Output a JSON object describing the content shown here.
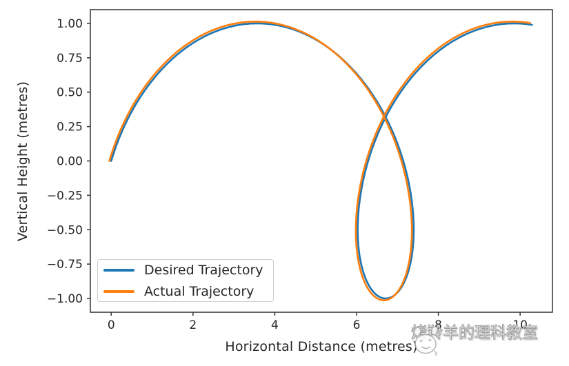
{
  "figure": {
    "background": "#ffffff"
  },
  "chart_data": {
    "type": "line",
    "title": "",
    "xlabel": "Horizontal Distance (metres)",
    "ylabel": "Vertical Height (metres)",
    "xlim": [
      -0.51,
      10.79
    ],
    "ylim": [
      -1.1,
      1.1
    ],
    "x_ticks": [
      0,
      2,
      4,
      6,
      8,
      10
    ],
    "x_tick_labels": [
      "0",
      "2",
      "4",
      "6",
      "8",
      "10"
    ],
    "y_ticks": [
      1.0,
      0.75,
      0.5,
      0.25,
      0.0,
      -0.25,
      -0.5,
      -0.75,
      -1.0
    ],
    "y_tick_labels": [
      "1.00",
      "0.75",
      "0.50",
      "0.25",
      "0.00",
      "−0.25",
      "−0.50",
      "−0.75",
      "−1.00"
    ],
    "grid": false,
    "legend": {
      "position": "lower-left",
      "entries": [
        "Desired Trajectory",
        "Actual Trajectory"
      ]
    },
    "series": [
      {
        "name": "Desired Trajectory",
        "color": "#1f77b4",
        "line_width": 2.7,
        "parametric": {
          "description": "looping cycloid: x = t + a*(1 - cos t) + dx ; y = amp*sin t",
          "a": 2.0,
          "dx": 0.0,
          "amp": 1.0,
          "t_min": 0,
          "t_max": 8
        },
        "key_points": [
          [
            0,
            0
          ],
          [
            0.74,
            0.48
          ],
          [
            1.92,
            0.84
          ],
          [
            3.36,
            1.0
          ],
          [
            3.57,
            1.0
          ],
          [
            4.83,
            0.91
          ],
          [
            6.1,
            0.6
          ],
          [
            6.98,
            0.14
          ],
          [
            7.4,
            -0.5
          ],
          [
            7.31,
            -0.76
          ],
          [
            6.92,
            -0.98
          ],
          [
            6.71,
            -1.0
          ],
          [
            6.43,
            -0.96
          ],
          [
            6.03,
            -0.5
          ],
          [
            6.08,
            -0.28
          ],
          [
            6.28,
            0.0
          ],
          [
            6.71,
            0.32
          ],
          [
            7.49,
            0.66
          ],
          [
            8.81,
            0.94
          ],
          [
            10.29,
            0.99
          ]
        ],
        "self_intersection": [
          6.71,
          0.32
        ]
      },
      {
        "name": "Actual Trajectory",
        "color": "#ff7f0e",
        "line_width": 2.7,
        "parametric": {
          "description": "same looping cycloid, slight tracking offset",
          "a": 2.0,
          "dx": -0.045,
          "amp": 1.013,
          "t_min": 0,
          "t_max": 8
        },
        "key_points": [
          [
            -0.05,
            0
          ],
          [
            3.53,
            1.01
          ],
          [
            6.67,
            -1.01
          ],
          [
            10.25,
            1.0
          ]
        ]
      }
    ],
    "axes_style": {
      "spine_color": "#3d3d3d",
      "tick_color": "#3d3d3d",
      "tick_label_color": "#262626",
      "tick_label_size": 17,
      "tick_length": 5
    }
  },
  "watermark": {
    "icon": "antelope-head-icon",
    "text": "烤羚羊的理科教室"
  }
}
